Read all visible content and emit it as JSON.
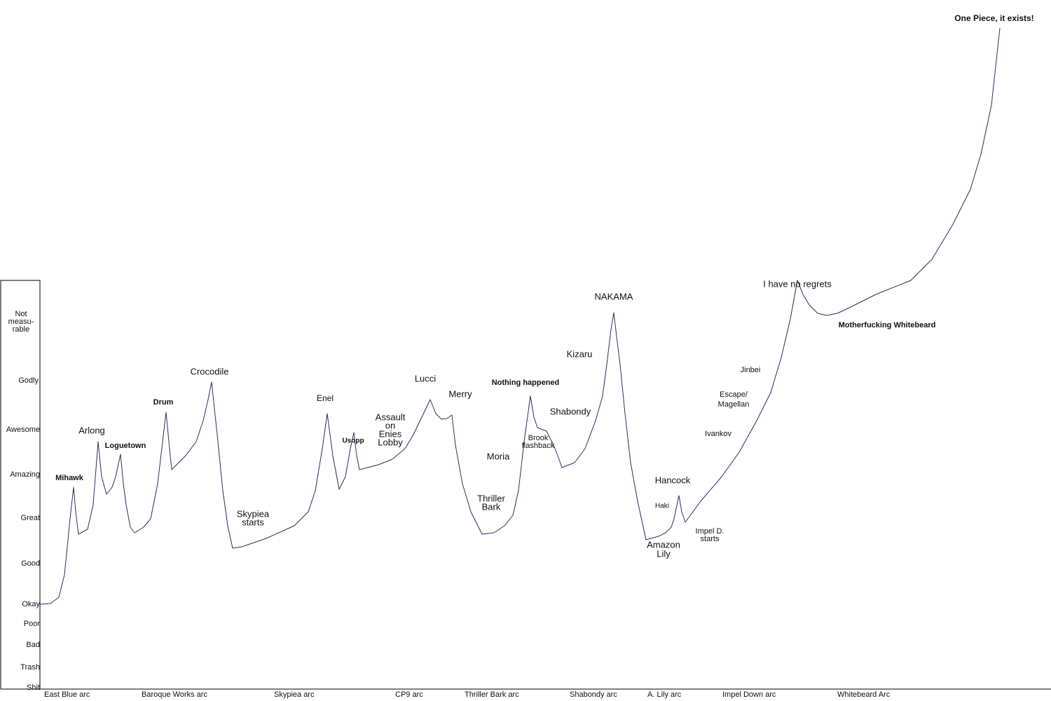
{
  "y_axis_labels": [
    [
      "Not",
      "measu-",
      "rable"
    ],
    [
      "Godly"
    ],
    [
      "Awesome"
    ],
    [
      "Amazing"
    ],
    [
      "Great"
    ],
    [
      "Good"
    ],
    [
      "Okay"
    ],
    [
      "Poor"
    ],
    [
      "Bad"
    ],
    [
      "Trash"
    ],
    [
      "Shit"
    ]
  ],
  "x_axis_labels": [
    "East Blue arc",
    "Baroque Works arc",
    "Skypiea arc",
    "CP9 arc",
    "Thriller Bark arc",
    "Shabondy arc",
    "A. Lily arc",
    "Impel Down arc",
    "Whitebeard Arc"
  ],
  "annotations": [
    [
      "One Piece, it exists!"
    ],
    [
      "I have no regrets"
    ],
    [
      "Motherfucking Whitebeard"
    ],
    [
      "NAKAMA"
    ],
    [
      "Kizaru"
    ],
    [
      "Jinbei"
    ],
    [
      "Escape/",
      "Magellan"
    ],
    [
      "Ivankov"
    ],
    [
      "Shabondy"
    ],
    [
      "Nothing happened"
    ],
    [
      "Brook",
      "flashback"
    ],
    [
      "Moria"
    ],
    [
      "Thriller",
      "Bark"
    ],
    [
      "Lucci"
    ],
    [
      "Merry"
    ],
    [
      "Assault",
      "on",
      "Enies",
      "Lobby"
    ],
    [
      "Usopp"
    ],
    [
      "Enel"
    ],
    [
      "Skypiea",
      "starts"
    ],
    [
      "Crocodile"
    ],
    [
      "Drum"
    ],
    [
      "Loguetown"
    ],
    [
      "Arlong"
    ],
    [
      "Mihawk"
    ],
    [
      "Hancock"
    ],
    [
      "Haki"
    ],
    [
      "Amazon",
      "Lily"
    ],
    [
      "Impel D.",
      "starts"
    ]
  ]
}
